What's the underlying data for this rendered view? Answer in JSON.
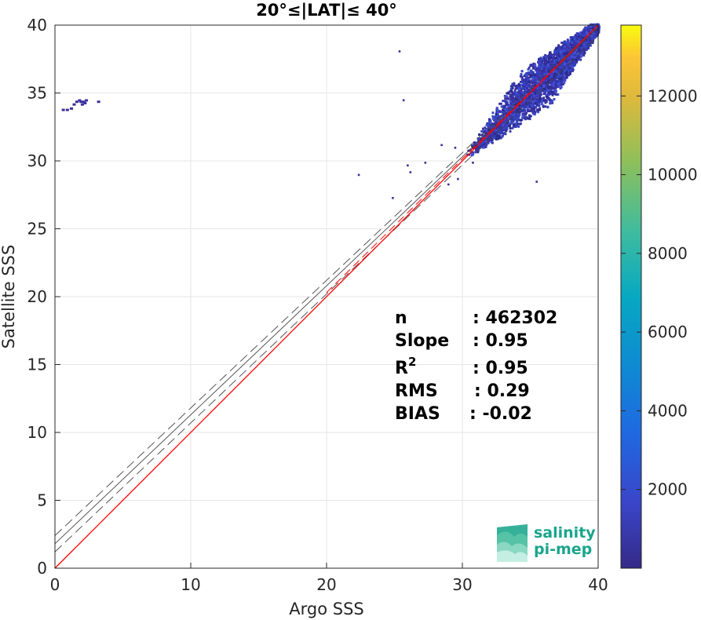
{
  "chart_data": {
    "type": "heatmap",
    "title": "20°≤|LAT|≤ 40°",
    "xlabel": "Argo SSS",
    "ylabel": "Satellite SSS",
    "xlim": [
      0,
      40
    ],
    "ylim": [
      0,
      40
    ],
    "xticks": [
      "0",
      "10",
      "20",
      "30",
      "40"
    ],
    "yticks": [
      "0",
      "5",
      "10",
      "15",
      "20",
      "25",
      "30",
      "35",
      "40"
    ],
    "grid": true,
    "colorbar": {
      "ticks": [
        "2000",
        "4000",
        "6000",
        "8000",
        "10000",
        "12000"
      ],
      "tick_values": [
        2000,
        4000,
        6000,
        8000,
        10000,
        12000
      ],
      "range": [
        0,
        13800
      ],
      "colormap": "parula"
    },
    "reference_lines": {
      "identity": {
        "color": "#ff0000",
        "slope": 1,
        "intercept": 0
      },
      "regression": {
        "color": "#555555",
        "slope": 0.95,
        "intercept": 1.8
      },
      "regression_offsets": [
        -0.6,
        0.6
      ]
    },
    "stats": [
      {
        "name": "n",
        "value": ": 462302"
      },
      {
        "name": "Slope",
        "value": ": 0.95"
      },
      {
        "name": "R",
        "sup": "2",
        "value": ": 0.95"
      },
      {
        "name": "RMS",
        "value": ": 0.29"
      },
      {
        "name": "BIAS",
        "value": ": -0.02"
      }
    ],
    "density_clusters": [
      {
        "x_range": [
          30.5,
          40
        ],
        "y_range": [
          31,
          40
        ],
        "note": "main cluster along diagonal"
      },
      {
        "x_range": [
          0.4,
          3.1
        ],
        "y_range": [
          33.6,
          34.5
        ],
        "note": "outliers near x=0..3"
      }
    ]
  },
  "logo": {
    "line1": "salinity",
    "line2": "pi-mep",
    "color": "#1aa58c"
  }
}
